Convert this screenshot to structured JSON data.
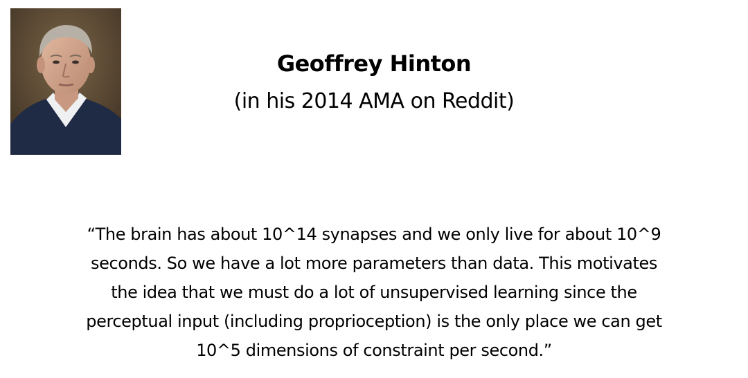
{
  "header": {
    "name": "Geoffrey Hinton",
    "subtitle": "(in his 2014 AMA on Reddit)"
  },
  "quote": {
    "lines": [
      "“The brain has about 10^14 synapses and we only live for about 10^9",
      "seconds. So we have a lot more parameters than data. This motivates",
      "the idea that we must do a lot of unsupervised learning since the",
      "perceptual input (including proprioception) is the only place we can get",
      "10^5 dimensions of constraint per second.”"
    ]
  },
  "colors": {
    "background": "#ffffff",
    "text": "#000000",
    "sweater": "#1f2a44",
    "collar": "#eef0f2",
    "backdrop": "#5b4a36"
  }
}
